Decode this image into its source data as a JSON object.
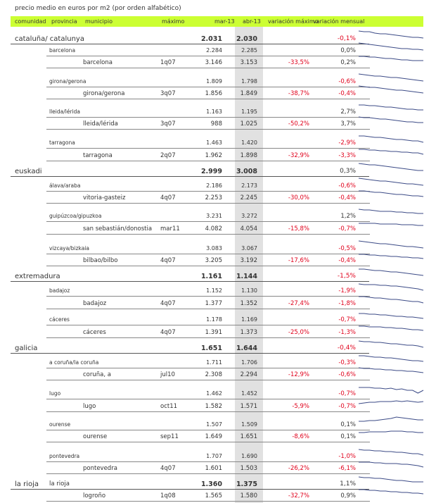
{
  "caption": "precio medio en euros por m2 (por orden alfabético)",
  "headers": {
    "comunidad": "comunidad",
    "provincia": "provincia",
    "municipio": "municipio",
    "maximo": "máximo",
    "mar13": "mar-13",
    "abr13": "abr-13",
    "var_max": "variación máximo",
    "var_mensual": "variación mensual"
  },
  "rows": [
    {
      "level": "c",
      "name": "cataluña/ catalunya",
      "mar": "2.031",
      "abr": "2.030",
      "vmax": "",
      "vmen": "-0,1%",
      "spark": [
        2,
        3,
        3,
        5,
        6,
        6,
        7,
        8,
        9,
        10,
        11,
        11,
        12
      ]
    },
    {
      "level": "p",
      "name": "barcelona",
      "mar": "2.284",
      "abr": "2.285",
      "vmax": "",
      "vmen": "0,0%",
      "spark": [
        2,
        3,
        4,
        5,
        6,
        7,
        8,
        9,
        10,
        10,
        11,
        11,
        12
      ]
    },
    {
      "level": "m",
      "name": "barcelona",
      "max": "1q07",
      "mar": "3.146",
      "abr": "3.153",
      "vmax": "-33,5%",
      "vmen": "0,2%",
      "spark": [
        4,
        4,
        5,
        5,
        6,
        7,
        7,
        8,
        9,
        9,
        10,
        10,
        10
      ]
    },
    {
      "level": "p",
      "name": "girona/gerona",
      "mar": "1.809",
      "abr": "1.798",
      "vmax": "",
      "vmen": "-0,6%",
      "spark": [
        2,
        3,
        4,
        5,
        5,
        6,
        7,
        7,
        8,
        9,
        10,
        11,
        12
      ]
    },
    {
      "level": "m",
      "name": "girona/gerona",
      "max": "3q07",
      "mar": "1.856",
      "abr": "1.849",
      "vmax": "-38,7%",
      "vmen": "-0,4%",
      "spark": [
        2,
        3,
        4,
        4,
        5,
        6,
        7,
        8,
        8,
        9,
        10,
        11,
        12
      ]
    },
    {
      "level": "p",
      "name": "lleida/lérida",
      "mar": "1.163",
      "abr": "1.195",
      "vmax": "",
      "vmen": "2,7%",
      "spark": [
        3,
        3,
        4,
        4,
        5,
        6,
        6,
        7,
        8,
        9,
        9,
        10,
        10
      ]
    },
    {
      "level": "m",
      "name": "lleida/lérida",
      "max": "3q07",
      "mar": "988",
      "abr": "1.025",
      "vmax": "-50,2%",
      "vmen": "3,7%",
      "spark": [
        3,
        4,
        4,
        5,
        6,
        6,
        7,
        8,
        9,
        10,
        10,
        11,
        11
      ]
    },
    {
      "level": "p",
      "name": "tarragona",
      "mar": "1.463",
      "abr": "1.420",
      "vmax": "",
      "vmen": "-2,9%",
      "spark": [
        3,
        3,
        4,
        5,
        5,
        6,
        7,
        8,
        8,
        9,
        10,
        10,
        12
      ]
    },
    {
      "level": "m",
      "name": "tarragona",
      "max": "2q07",
      "mar": "1.962",
      "abr": "1.898",
      "vmax": "-32,9%",
      "vmen": "-3,3%",
      "spark": [
        4,
        4,
        5,
        5,
        6,
        6,
        7,
        7,
        8,
        8,
        9,
        9,
        11
      ]
    },
    {
      "level": "c",
      "name": "euskadi",
      "mar": "2.999",
      "abr": "3.008",
      "vmax": "",
      "vmen": "0,3%",
      "spark": [
        2,
        3,
        4,
        4,
        5,
        6,
        7,
        8,
        9,
        10,
        11,
        12,
        12
      ]
    },
    {
      "level": "p",
      "name": "álava/araba",
      "mar": "2.186",
      "abr": "2.173",
      "vmax": "",
      "vmen": "-0,6%",
      "spark": [
        2,
        3,
        4,
        5,
        6,
        6,
        7,
        8,
        9,
        10,
        10,
        11,
        12
      ]
    },
    {
      "level": "m",
      "name": "vitoria-gasteiz",
      "max": "4q07",
      "mar": "2.253",
      "abr": "2.245",
      "vmax": "-30,0%",
      "vmen": "-0,4%",
      "spark": [
        3,
        3,
        4,
        5,
        5,
        6,
        7,
        8,
        8,
        9,
        10,
        10,
        11
      ]
    },
    {
      "level": "p",
      "name": "guipúzcoa/gipuzkoa",
      "mar": "3.231",
      "abr": "3.272",
      "vmax": "",
      "vmen": "1,2%",
      "spark": [
        3,
        4,
        4,
        5,
        6,
        6,
        6,
        7,
        7,
        8,
        8,
        9,
        9
      ]
    },
    {
      "level": "m",
      "name": "san sebastián/donostia",
      "max": "mar11",
      "mar": "4.082",
      "abr": "4.054",
      "vmax": "-15,8%",
      "vmen": "-0,7%",
      "spark": [
        5,
        5,
        5,
        5,
        6,
        6,
        6,
        6,
        7,
        7,
        7,
        8,
        8
      ]
    },
    {
      "level": "p",
      "name": "vizcaya/bizkaia",
      "mar": "3.083",
      "abr": "3.067",
      "vmax": "",
      "vmen": "-0,5%",
      "spark": [
        2,
        3,
        4,
        5,
        6,
        6,
        7,
        8,
        9,
        10,
        10,
        11,
        12
      ]
    },
    {
      "level": "m",
      "name": "bilbao/bilbo",
      "max": "4q07",
      "mar": "3.205",
      "abr": "3.192",
      "vmax": "-17,6%",
      "vmen": "-0,4%",
      "spark": [
        4,
        4,
        5,
        5,
        6,
        6,
        7,
        7,
        8,
        8,
        9,
        9,
        10
      ]
    },
    {
      "level": "c",
      "name": "extremadura",
      "mar": "1.161",
      "abr": "1.144",
      "vmax": "",
      "vmen": "-1,5%",
      "spark": [
        3,
        3,
        4,
        5,
        5,
        6,
        7,
        7,
        8,
        9,
        10,
        11,
        12
      ]
    },
    {
      "level": "p",
      "name": "badajoz",
      "mar": "1.152",
      "abr": "1.130",
      "vmax": "",
      "vmen": "-1,9%",
      "spark": [
        3,
        4,
        4,
        4,
        5,
        5,
        6,
        6,
        7,
        8,
        9,
        10,
        12
      ]
    },
    {
      "level": "m",
      "name": "badajoz",
      "max": "4q07",
      "mar": "1.377",
      "abr": "1.352",
      "vmax": "-27,4%",
      "vmen": "-1,8%",
      "spark": [
        3,
        3,
        4,
        5,
        5,
        6,
        7,
        7,
        8,
        9,
        10,
        10,
        12
      ]
    },
    {
      "level": "p",
      "name": "cáceres",
      "mar": "1.178",
      "abr": "1.169",
      "vmax": "",
      "vmen": "-0,7%",
      "spark": [
        4,
        4,
        5,
        5,
        6,
        6,
        7,
        8,
        8,
        9,
        9,
        10,
        11
      ]
    },
    {
      "level": "m",
      "name": "cáceres",
      "max": "4q07",
      "mar": "1.391",
      "abr": "1.373",
      "vmax": "-25,0%",
      "vmen": "-1,3%",
      "spark": [
        4,
        4,
        5,
        5,
        5,
        6,
        6,
        7,
        7,
        8,
        9,
        9,
        10
      ]
    },
    {
      "level": "c",
      "name": "galicia",
      "mar": "1.651",
      "abr": "1.644",
      "vmax": "",
      "vmen": "-0,4%",
      "spark": [
        3,
        4,
        4,
        5,
        5,
        6,
        7,
        7,
        8,
        9,
        9,
        10,
        12
      ]
    },
    {
      "level": "p",
      "name": "a coruña/la coruña",
      "mar": "1.711",
      "abr": "1.706",
      "vmax": "",
      "vmen": "-0,3%",
      "spark": [
        3,
        3,
        4,
        5,
        5,
        6,
        6,
        7,
        8,
        9,
        10,
        10,
        11
      ]
    },
    {
      "level": "m",
      "name": "coruña, a",
      "max": "jul10",
      "mar": "2.308",
      "abr": "2.294",
      "vmax": "-12,9%",
      "vmen": "-0,6%",
      "spark": [
        3,
        4,
        4,
        5,
        5,
        6,
        6,
        7,
        7,
        8,
        8,
        9,
        10
      ]
    },
    {
      "level": "p",
      "name": "lugo",
      "mar": "1.462",
      "abr": "1.452",
      "vmax": "",
      "vmen": "-0,7%",
      "spark": [
        4,
        4,
        4,
        5,
        5,
        6,
        5,
        7,
        6,
        8,
        8,
        12,
        8
      ]
    },
    {
      "level": "m",
      "name": "lugo",
      "max": "oct11",
      "mar": "1.582",
      "abr": "1.571",
      "vmax": "-5,9%",
      "vmen": "-0,7%",
      "spark": [
        9,
        8,
        7,
        7,
        6,
        6,
        6,
        5,
        6,
        5,
        6,
        7,
        6
      ]
    },
    {
      "level": "p",
      "name": "ourense",
      "mar": "1.507",
      "abr": "1.509",
      "vmax": "",
      "vmen": "0,1%",
      "spark": [
        8,
        8,
        7,
        7,
        6,
        5,
        4,
        2,
        3,
        4,
        5,
        6,
        6
      ]
    },
    {
      "level": "m",
      "name": "ourense",
      "max": "sep11",
      "mar": "1.649",
      "abr": "1.651",
      "vmax": "-8,6%",
      "vmen": "0,1%",
      "spark": [
        7,
        7,
        6,
        6,
        6,
        6,
        5,
        5,
        5,
        6,
        6,
        7,
        7
      ]
    },
    {
      "level": "p",
      "name": "pontevedra",
      "mar": "1.707",
      "abr": "1.690",
      "vmax": "",
      "vmen": "-1,0%",
      "spark": [
        3,
        4,
        4,
        5,
        5,
        6,
        6,
        7,
        7,
        8,
        9,
        9,
        11
      ]
    },
    {
      "level": "m",
      "name": "pontevedra",
      "max": "4q07",
      "mar": "1.601",
      "abr": "1.503",
      "vmax": "-26,2%",
      "vmen": "-6,1%",
      "spark": [
        4,
        4,
        4,
        5,
        5,
        6,
        6,
        6,
        7,
        7,
        8,
        9,
        11
      ]
    },
    {
      "level": "c",
      "name": "la rioja",
      "prov": "la rioja",
      "mar": "1.360",
      "abr": "1.375",
      "vmax": "",
      "vmen": "1,1%",
      "spark": [
        3,
        4,
        4,
        5,
        5,
        6,
        7,
        8,
        8,
        9,
        10,
        10,
        10
      ]
    },
    {
      "level": "m",
      "name": "logroño",
      "max": "1q08",
      "mar": "1.565",
      "abr": "1.580",
      "vmax": "-32,7%",
      "vmen": "0,9%",
      "spark": [
        4,
        4,
        5,
        5,
        6,
        6,
        7,
        7,
        8,
        8,
        9,
        9,
        10
      ]
    }
  ]
}
